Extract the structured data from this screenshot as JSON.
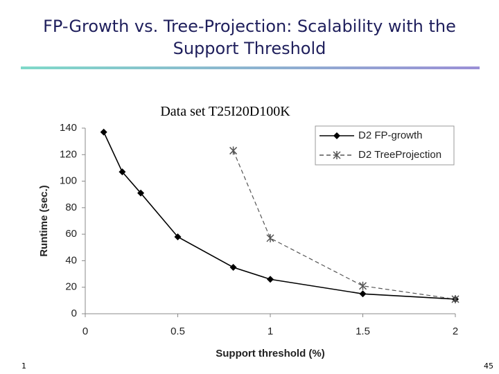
{
  "chart_data": {
    "type": "line",
    "title": "FP-Growth vs. Tree-Projection: Scalability with the Support Threshold",
    "subtitle": "Data set T25I20D100K",
    "x_label": "Support threshold (%)",
    "y_label": "Runtime (sec.)",
    "xlim": [
      0,
      2
    ],
    "xticks": [
      0,
      0.5,
      1,
      1.5,
      2
    ],
    "ylim": [
      0,
      140
    ],
    "yticks": [
      0,
      20,
      40,
      60,
      80,
      100,
      120,
      140
    ],
    "grid": false,
    "legend": "upper right",
    "series": [
      {
        "name": "D2 FP-growth",
        "color": "#000000",
        "linestyle": "solid",
        "marker": "diamond",
        "x": [
          0.1,
          0.2,
          0.3,
          0.5,
          0.8,
          1,
          1.5,
          2
        ],
        "values": [
          137,
          107,
          91,
          58,
          35,
          26,
          15,
          11
        ]
      },
      {
        "name": "D2 TreeProjection",
        "color": "#555555",
        "linestyle": "dashed",
        "marker": "star",
        "x": [
          0.8,
          1,
          1.5,
          2
        ],
        "values": [
          123,
          57,
          21,
          11
        ]
      }
    ]
  },
  "footer": {
    "left": "1",
    "right": "45"
  }
}
